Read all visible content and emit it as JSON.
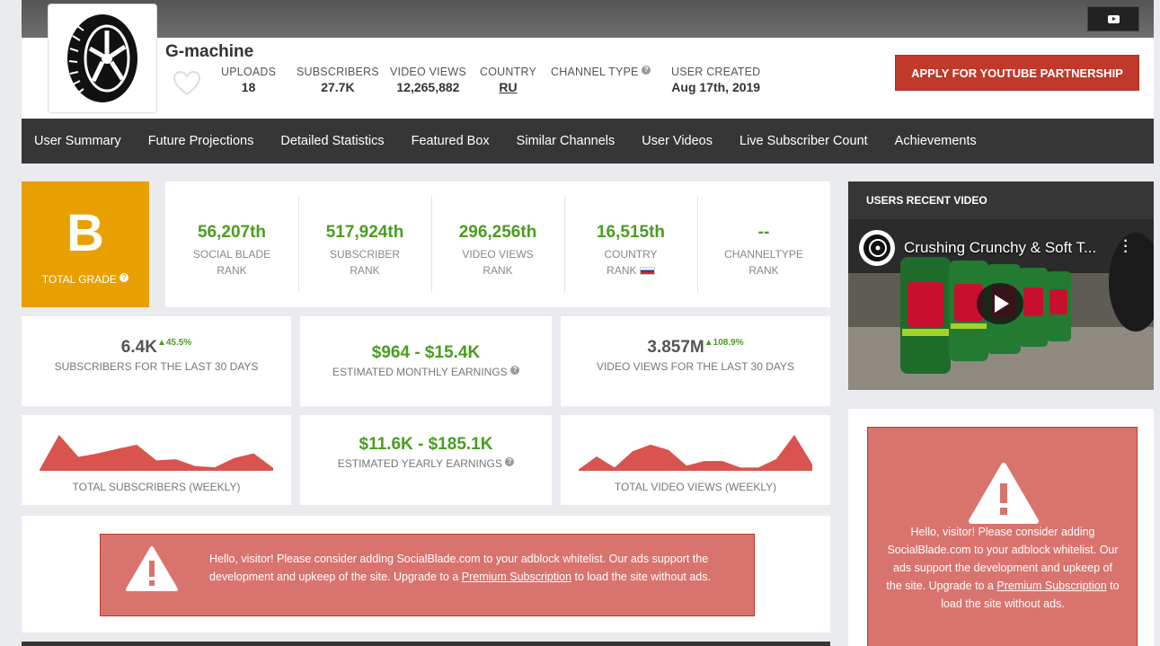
{
  "topbar": {
    "youtube_button": "youtube-icon"
  },
  "channel": {
    "name": "G-machine",
    "stats": [
      {
        "label": "UPLOADS",
        "value": "18"
      },
      {
        "label": "SUBSCRIBERS",
        "value": "27.7K"
      },
      {
        "label": "VIDEO VIEWS",
        "value": "12,265,882"
      },
      {
        "label": "COUNTRY",
        "value": "RU"
      },
      {
        "label": "CHANNEL TYPE",
        "value": ""
      },
      {
        "label": "USER CREATED",
        "value": "Aug 17th, 2019"
      }
    ],
    "apply_label": "APPLY FOR YOUTUBE PARTNERSHIP"
  },
  "nav": {
    "items": [
      "User Summary",
      "Future Projections",
      "Detailed Statistics",
      "Featured Box",
      "Similar Channels",
      "User Videos",
      "Live Subscriber Count",
      "Achievements"
    ]
  },
  "grade": {
    "letter": "B",
    "label": "TOTAL GRADE"
  },
  "ranks": [
    {
      "value": "56,207th",
      "line1": "SOCIAL BLADE",
      "line2": "RANK"
    },
    {
      "value": "517,924th",
      "line1": "SUBSCRIBER",
      "line2": "RANK"
    },
    {
      "value": "296,256th",
      "line1": "VIDEO VIEWS",
      "line2": "RANK"
    },
    {
      "value": "16,515th",
      "line1": "COUNTRY",
      "line2": "RANK"
    },
    {
      "value": "--",
      "line1": "CHANNELTYPE",
      "line2": "RANK"
    }
  ],
  "cards": {
    "subs30": {
      "value": "6.4K",
      "delta": "45.5%",
      "label": "SUBSCRIBERS FOR THE LAST 30 DAYS"
    },
    "monthly": {
      "value": "$964 - $15.4K",
      "label": "ESTIMATED MONTHLY EARNINGS"
    },
    "views30": {
      "value": "3.857M",
      "delta": "108.9%",
      "label": "VIDEO VIEWS FOR THE LAST 30 DAYS"
    },
    "subs_weekly": {
      "label": "TOTAL SUBSCRIBERS (WEEKLY)"
    },
    "yearly": {
      "value": "$11.6K - $185.1K",
      "label": "ESTIMATED YEARLY EARNINGS"
    },
    "views_weekly": {
      "label": "TOTAL VIDEO VIEWS (WEEKLY)"
    }
  },
  "sparklines": {
    "subs": [
      2,
      62,
      24,
      30,
      38,
      45,
      18,
      20,
      8,
      6,
      22,
      30,
      5
    ],
    "views": [
      2,
      22,
      5,
      30,
      40,
      32,
      8,
      15,
      15,
      5,
      5,
      18,
      55,
      10
    ],
    "color": "#d9534f"
  },
  "ad_main": {
    "text_before": "Hello, visitor! Please consider adding SocialBlade.com to your adblock whitelist. Our ads support the development and upkeep of the site. Upgrade to a ",
    "link": "Premium Subscription",
    "text_after": " to load the site without ads."
  },
  "recent_video": {
    "heading": "USERS RECENT VIDEO",
    "title": "Crushing Crunchy & Soft T..."
  },
  "ad_side": {
    "text_before": "Hello, visitor! Please consider adding SocialBlade.com to your adblock whitelist. Our ads support the development and upkeep of the site. Upgrade to a ",
    "link": "Premium Subscription",
    "text_after": " to load the site without ads."
  },
  "colors": {
    "accent_red": "#c0392b",
    "grade_orange": "#e8a000",
    "rank_green": "#4a9d22",
    "nav_dark": "#363636"
  }
}
